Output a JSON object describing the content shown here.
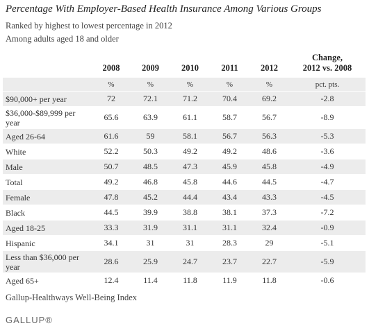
{
  "title": "Percentage With Employer-Based Health Insurance Among Various Groups",
  "subtitles": [
    "Ranked by highest to lowest percentage in 2012",
    "Among adults aged 18 and older"
  ],
  "table": {
    "header": {
      "years": [
        "2008",
        "2009",
        "2010",
        "2011",
        "2012"
      ],
      "change": [
        "Change,",
        "2012 vs. 2008"
      ]
    },
    "units": [
      "%",
      "%",
      "%",
      "%",
      "%",
      "pct. pts."
    ],
    "rows": [
      [
        "$90,000+ per year",
        72,
        72.1,
        71.2,
        70.4,
        69.2,
        -2.8
      ],
      [
        "$36,000-$89,999 per year",
        65.6,
        63.9,
        61.1,
        58.7,
        56.7,
        -8.9
      ],
      [
        "Aged 26-64",
        61.6,
        59,
        58.1,
        56.7,
        56.3,
        -5.3
      ],
      [
        "White",
        52.2,
        50.3,
        49.2,
        49.2,
        48.6,
        -3.6
      ],
      [
        "Male",
        50.7,
        48.5,
        47.3,
        45.9,
        45.8,
        -4.9
      ],
      [
        "Total",
        49.2,
        46.8,
        45.8,
        44.6,
        44.5,
        -4.7
      ],
      [
        "Female",
        47.8,
        45.2,
        44.4,
        43.4,
        43.3,
        -4.5
      ],
      [
        "Black",
        44.5,
        39.9,
        38.8,
        38.1,
        37.3,
        -7.2
      ],
      [
        "Aged 18-25",
        33.3,
        31.9,
        31.1,
        31.1,
        32.4,
        -0.9
      ],
      [
        "Hispanic",
        34.1,
        31,
        31,
        28.3,
        29,
        -5.1
      ],
      [
        "Less than $36,000 per year",
        28.6,
        25.9,
        24.7,
        23.7,
        22.7,
        -5.9
      ],
      [
        "Aged 65+",
        12.4,
        11.4,
        11.8,
        11.9,
        11.8,
        -0.6
      ]
    ]
  },
  "source": "Gallup-Healthways Well-Being Index",
  "logo": "GALLUP®"
}
